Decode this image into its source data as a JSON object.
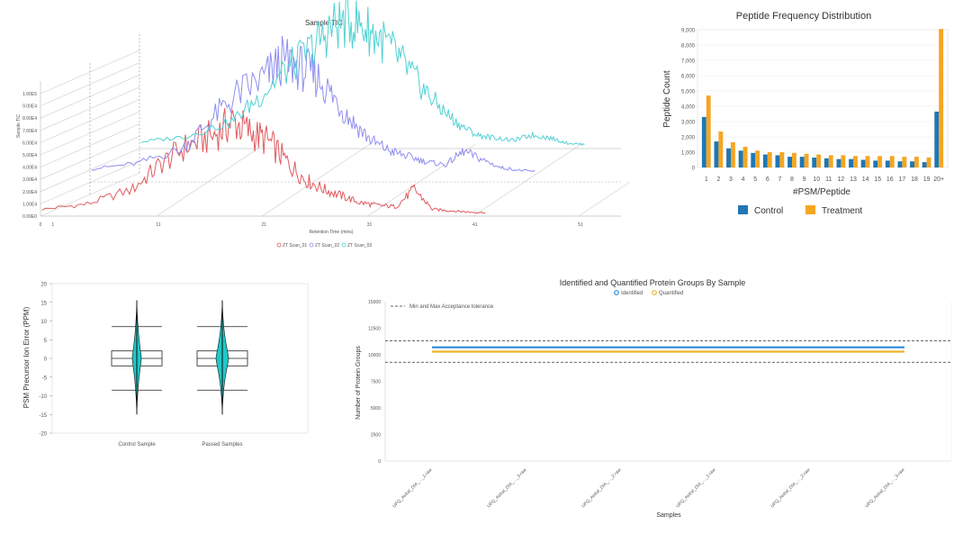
{
  "tic": {
    "title": "Sample TIC",
    "ylabel": "Sample TIC",
    "xlabel": "Retention Time (mins)",
    "xticks": [
      "0",
      "1",
      "11",
      "21",
      "31",
      "41",
      "51"
    ],
    "yticks": [
      "0.00E0",
      "1.00E4",
      "2.00E4",
      "3.00E4",
      "4.00E4",
      "5.00E4",
      "6.00E4",
      "7.00E4",
      "8.00E4",
      "9.00E4",
      "1.00E5"
    ],
    "legend": [
      "ZT Scan_01",
      "ZT Scan_02",
      "ZT Scan_03"
    ],
    "colors": [
      "#e05a5f",
      "#8f8ff0",
      "#52d1d3"
    ]
  },
  "peptide": {
    "title": "Peptide Frequency Distribution",
    "ylabel": "Peptide Count",
    "xlabel": "#PSM/Peptide",
    "legend": [
      "Control",
      "Treatment"
    ],
    "colors": [
      "#1f77b4",
      "#f5a623"
    ]
  },
  "violin": {
    "ylabel": "PSM Precursor Ion Error (PPM)",
    "yticks": [
      "20",
      "15",
      "10",
      "5",
      "0",
      "-5",
      "-10",
      "-15",
      "-20"
    ],
    "categories": [
      "Control Sample",
      "Passed Samples"
    ]
  },
  "protein": {
    "title": "Identified and Quantified Protein Groups By Sample",
    "legend": [
      "Identified",
      "Quantified"
    ],
    "tolerance_label": "Min and Max Acceptance tolerance",
    "ylabel": "Number of Protein Groups",
    "xlabel": "Samples",
    "yticks": [
      "15000",
      "12500",
      "10000",
      "7500",
      "5000",
      "2500",
      "0"
    ],
    "colors": [
      "#2b8bd6",
      "#f0b429"
    ]
  },
  "chart_data": [
    {
      "type": "line",
      "title": "Sample TIC",
      "xlabel": "Retention Time (mins)",
      "ylabel": "Sample TIC",
      "series": [
        {
          "name": "ZT Scan_01",
          "x": [
            0,
            5,
            10,
            13,
            16,
            19,
            21,
            23,
            25,
            27,
            29,
            31,
            33,
            35,
            37,
            39,
            41,
            43,
            45,
            47,
            49
          ],
          "y": [
            5000,
            9000,
            20000,
            38000,
            52000,
            60000,
            70000,
            62000,
            55000,
            40000,
            27000,
            20000,
            15000,
            10000,
            8000,
            7000,
            20000,
            5000,
            4000,
            3000,
            2500
          ]
        },
        {
          "name": "ZT Scan_02",
          "x": [
            0,
            5,
            10,
            13,
            16,
            19,
            21,
            23,
            25,
            27,
            29,
            31,
            33,
            35,
            37,
            39,
            41,
            43,
            45,
            47,
            49
          ],
          "y": [
            5000,
            9000,
            20000,
            40000,
            60000,
            72000,
            85000,
            80000,
            72000,
            55000,
            38000,
            25000,
            18000,
            14000,
            10000,
            8000,
            18000,
            12000,
            6000,
            4000,
            3000
          ]
        },
        {
          "name": "ZT Scan_03",
          "x": [
            0,
            5,
            10,
            13,
            16,
            19,
            21,
            23,
            25,
            27,
            29,
            31,
            33,
            35,
            37,
            39,
            41,
            43,
            45,
            47,
            49
          ],
          "y": [
            5000,
            9000,
            20000,
            38000,
            58000,
            75000,
            90000,
            95000,
            88000,
            78000,
            62000,
            45000,
            30000,
            18000,
            10000,
            8000,
            6000,
            10000,
            8000,
            4000,
            3000
          ]
        }
      ],
      "xlim": [
        0,
        55
      ]
    },
    {
      "type": "bar",
      "title": "Peptide Frequency Distribution",
      "xlabel": "#PSM/Peptide",
      "ylabel": "Peptide Count",
      "categories": [
        "1",
        "2",
        "3",
        "4",
        "5",
        "6",
        "7",
        "8",
        "9",
        "10",
        "11",
        "12",
        "13",
        "14",
        "15",
        "16",
        "17",
        "18",
        "19",
        "20+"
      ],
      "series": [
        {
          "name": "Control",
          "values": [
            3300,
            1700,
            1250,
            1100,
            950,
            850,
            800,
            700,
            700,
            650,
            600,
            550,
            550,
            500,
            450,
            450,
            400,
            400,
            350,
            3650
          ]
        },
        {
          "name": "Treatment",
          "values": [
            4700,
            2350,
            1650,
            1350,
            1100,
            1000,
            1000,
            950,
            900,
            850,
            800,
            800,
            750,
            750,
            750,
            750,
            700,
            700,
            650,
            9050
          ]
        }
      ],
      "ylim": [
        0,
        9000
      ],
      "yticks": [
        "0",
        "1,000",
        "2,000",
        "3,000",
        "4,000",
        "5,000",
        "6,000",
        "7,000",
        "8,000",
        "9,000"
      ]
    },
    {
      "type": "box",
      "ylabel": "PSM Precursor Ion Error (PPM)",
      "categories": [
        "Control Sample",
        "Passed Samples"
      ],
      "ylim": [
        -20,
        20
      ],
      "boxes": [
        {
          "name": "Control Sample",
          "whisker_low": -8.5,
          "q1": -2,
          "median": 0,
          "q3": 2,
          "whisker_high": 8.5,
          "min": -15,
          "max": 15.5
        },
        {
          "name": "Passed Samples",
          "whisker_low": -8.5,
          "q1": -2,
          "median": 0,
          "q3": 2,
          "whisker_high": 8.5,
          "min": -15,
          "max": 15.5
        }
      ]
    },
    {
      "type": "line",
      "title": "Identified and Quantified Protein Groups By Sample",
      "xlabel": "Samples",
      "ylabel": "Number of Protein Groups",
      "categories": [
        "UFQ_Astral_DIA_..._1.raw",
        "UFQ_Astral_DIA_..._3.raw",
        "UFQ_Astral_DIA_..._2.raw",
        "UFQ_Astral_DIA_..._1.raw",
        "UFQ_Astral_DIA_..._2.raw",
        "UFQ_Astral_DIA_..._3.raw"
      ],
      "series": [
        {
          "name": "Identified",
          "values": [
            10700,
            10700,
            10700,
            10700,
            10700,
            10700
          ]
        },
        {
          "name": "Quantified",
          "values": [
            10300,
            10300,
            10300,
            10300,
            10300,
            10300
          ]
        }
      ],
      "tolerance": [
        9300,
        11300
      ],
      "ylim": [
        0,
        15000
      ]
    }
  ]
}
